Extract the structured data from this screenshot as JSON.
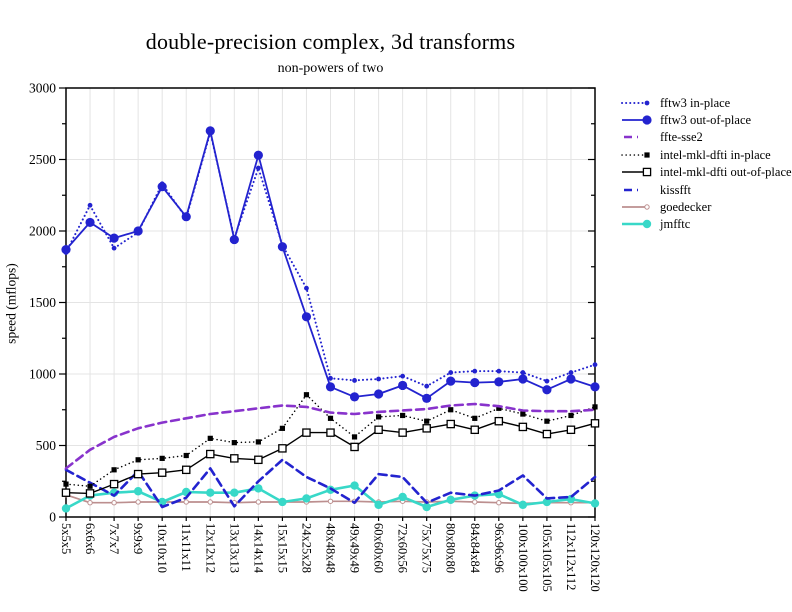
{
  "chart_data": {
    "type": "line",
    "title": "double-precision complex, 3d transforms",
    "subtitle": "non-powers of two",
    "ylabel": "speed (mflops)",
    "xlabel": "",
    "ylim": [
      0,
      3000
    ],
    "yticks": [
      0,
      500,
      1000,
      1500,
      2000,
      2500,
      3000
    ],
    "y_minor_step": 250,
    "grid": true,
    "legend_position": "right-outside",
    "frame_color": "#000000",
    "grid_color": "#e4e4e4",
    "categories": [
      "5x5x5",
      "6x6x6",
      "7x7x7",
      "9x9x9",
      "10x10x10",
      "11x11x11",
      "12x12x12",
      "13x13x13",
      "14x14x14",
      "15x15x15",
      "24x25x28",
      "48x48x48",
      "49x49x49",
      "60x60x60",
      "72x60x56",
      "75x75x75",
      "80x80x80",
      "84x84x84",
      "96x96x96",
      "100x100x100",
      "105x105x105",
      "112x112x112",
      "120x120x120"
    ],
    "series": [
      {
        "name": "fftw3 in-place",
        "color": "#2323cf",
        "line": "dotted",
        "width": 2.0,
        "marker": "circle",
        "marker_size": 2.4,
        "values": [
          1850,
          2180,
          1880,
          1990,
          2330,
          2090,
          2690,
          1950,
          2440,
          1900,
          1600,
          970,
          955,
          965,
          985,
          915,
          1010,
          1020,
          1020,
          1010,
          950,
          1010,
          1065
        ]
      },
      {
        "name": "fftw3 out-of-place",
        "color": "#2323cf",
        "line": "solid",
        "width": 1.8,
        "marker": "circle",
        "marker_size": 4.6,
        "values": [
          1870,
          2060,
          1950,
          2000,
          2310,
          2100,
          2700,
          1940,
          2530,
          1890,
          1400,
          910,
          840,
          860,
          920,
          830,
          950,
          940,
          945,
          965,
          890,
          965,
          910
        ]
      },
      {
        "name": "ffte-sse2",
        "color": "#8833cc",
        "line": "dashed",
        "width": 2.6,
        "marker": "none",
        "marker_size": 0,
        "values": [
          340,
          470,
          560,
          620,
          660,
          690,
          720,
          740,
          760,
          780,
          770,
          730,
          720,
          735,
          745,
          755,
          780,
          790,
          775,
          745,
          740,
          740,
          750
        ]
      },
      {
        "name": "intel-mkl-dfti in-place",
        "color": "#000000",
        "line": "dotted",
        "width": 1.5,
        "marker": "square",
        "marker_size": 2.6,
        "values": [
          230,
          215,
          330,
          400,
          410,
          430,
          550,
          520,
          525,
          620,
          855,
          690,
          560,
          700,
          710,
          670,
          750,
          690,
          760,
          720,
          670,
          710,
          770
        ]
      },
      {
        "name": "intel-mkl-dfti out-of-place",
        "color": "#000000",
        "line": "solid",
        "width": 1.4,
        "marker": "square-open",
        "marker_size": 3.6,
        "values": [
          170,
          165,
          230,
          300,
          310,
          330,
          440,
          410,
          400,
          480,
          590,
          590,
          490,
          610,
          590,
          620,
          650,
          610,
          670,
          630,
          580,
          610,
          655
        ]
      },
      {
        "name": "kissfft",
        "color": "#2323cf",
        "line": "dashed",
        "width": 2.6,
        "marker": "none",
        "marker_size": 0,
        "values": [
          330,
          240,
          150,
          320,
          70,
          135,
          340,
          75,
          250,
          400,
          280,
          200,
          100,
          300,
          280,
          100,
          170,
          150,
          185,
          290,
          130,
          140,
          280
        ]
      },
      {
        "name": "goedecker",
        "color": "#bc8f8f",
        "line": "solid",
        "width": 1.7,
        "marker": "circle-open",
        "marker_size": 2.2,
        "values": [
          155,
          100,
          100,
          105,
          105,
          105,
          105,
          100,
          105,
          105,
          105,
          110,
          110,
          105,
          110,
          105,
          110,
          105,
          100,
          95,
          100,
          100,
          100
        ]
      },
      {
        "name": "jmfftc",
        "color": "#38d8c8",
        "line": "solid",
        "width": 2.6,
        "marker": "circle",
        "marker_size": 4.2,
        "values": [
          60,
          150,
          170,
          180,
          105,
          175,
          170,
          170,
          200,
          105,
          130,
          190,
          220,
          85,
          140,
          70,
          120,
          150,
          160,
          85,
          105,
          125,
          95
        ]
      }
    ]
  }
}
